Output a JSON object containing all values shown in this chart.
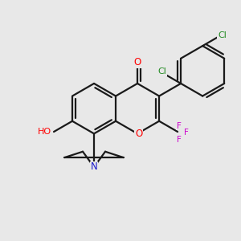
{
  "background_color": "#e8e8e8",
  "bond_color": "#1a1a1a",
  "atom_colors": {
    "O": "#ff0000",
    "N": "#1a1acc",
    "F": "#cc00cc",
    "Cl": "#228B22"
  },
  "figsize": [
    3.0,
    3.0
  ],
  "dpi": 100
}
